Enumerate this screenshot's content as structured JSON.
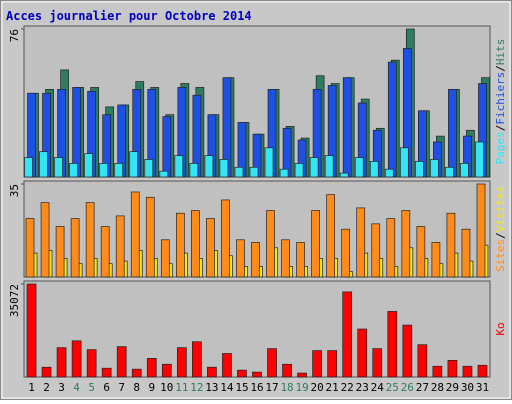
{
  "chart_data": {
    "type": "bar",
    "title": "Acces journalier pour Octobre 2014",
    "categories": [
      "1",
      "2",
      "3",
      "4",
      "5",
      "6",
      "7",
      "8",
      "9",
      "10",
      "11",
      "12",
      "13",
      "14",
      "15",
      "16",
      "17",
      "18",
      "19",
      "20",
      "21",
      "22",
      "23",
      "24",
      "25",
      "26",
      "27",
      "28",
      "29",
      "30",
      "31"
    ],
    "category_colors": [
      "#000",
      "#000",
      "#000",
      "#2e7d5e",
      "#2e7d5e",
      "#000",
      "#000",
      "#000",
      "#000",
      "#000",
      "#2e7d5e",
      "#2e7d5e",
      "#000",
      "#000",
      "#000",
      "#000",
      "#000",
      "#2e7d5e",
      "#2e7d5e",
      "#000",
      "#000",
      "#000",
      "#000",
      "#000",
      "#2e7d5e",
      "#2e7d5e",
      "#000",
      "#000",
      "#000",
      "#000",
      "#000"
    ],
    "legend_separator": "/",
    "panels": [
      {
        "ylim": [
          0,
          76
        ],
        "yticks": [
          76
        ],
        "series": [
          {
            "name": "Pages",
            "color": "#33e6f5",
            "values": [
              10,
              13,
              10,
              7,
              12,
              7,
              7,
              13,
              9,
              3,
              11,
              7,
              11,
              9,
              5,
              5,
              15,
              4,
              7,
              10,
              11,
              2,
              10,
              8,
              4,
              15,
              8,
              9,
              5,
              7,
              18
            ]
          },
          {
            "name": "Fichiers",
            "color": "#1f50e6",
            "values": [
              43,
              43,
              45,
              46,
              44,
              32,
              37,
              45,
              45,
              31,
              46,
              42,
              32,
              51,
              28,
              22,
              45,
              25,
              19,
              45,
              47,
              51,
              38,
              24,
              59,
              66,
              34,
              18,
              45,
              21,
              48
            ]
          },
          {
            "name": "Hits",
            "color": "#2e7d5e",
            "values": [
              43,
              45,
              55,
              46,
              46,
              36,
              37,
              49,
              46,
              32,
              48,
              46,
              32,
              51,
              28,
              22,
              45,
              26,
              20,
              52,
              48,
              51,
              40,
              25,
              60,
              76,
              34,
              21,
              45,
              24,
              51
            ]
          }
        ]
      },
      {
        "ylim": [
          0,
          35
        ],
        "yticks": [
          35
        ],
        "series": [
          {
            "name": "Sites",
            "color": "#ff8c1a",
            "values": [
              22,
              28,
              19,
              22,
              28,
              19,
              23,
              32,
              30,
              14,
              24,
              25,
              22,
              29,
              14,
              13,
              25,
              14,
              13,
              25,
              31,
              18,
              26,
              20,
              22,
              25,
              19,
              13,
              24,
              18,
              35
            ]
          },
          {
            "name": "Visites",
            "color": "#f5e61f",
            "values": [
              9,
              10,
              7,
              5,
              7,
              5,
              6,
              10,
              7,
              5,
              9,
              7,
              10,
              8,
              4,
              4,
              11,
              4,
              4,
              7,
              7,
              2,
              9,
              7,
              4,
              11,
              7,
              5,
              9,
              6,
              12
            ]
          }
        ]
      },
      {
        "ylim": [
          0,
          35072
        ],
        "yticks": [
          35072
        ],
        "series": [
          {
            "name": "Ko",
            "color": "#ff0000",
            "values": [
              35072,
              3690,
              11070,
              13650,
              10330,
              3320,
              11440,
              2950,
              7010,
              4800,
              11070,
              13290,
              3690,
              8860,
              2580,
              1850,
              10700,
              4800,
              1480,
              9970,
              9970,
              32100,
              18090,
              10700,
              24730,
              19570,
              12180,
              4060,
              6280,
              4060,
              4430
            ]
          }
        ]
      }
    ]
  }
}
